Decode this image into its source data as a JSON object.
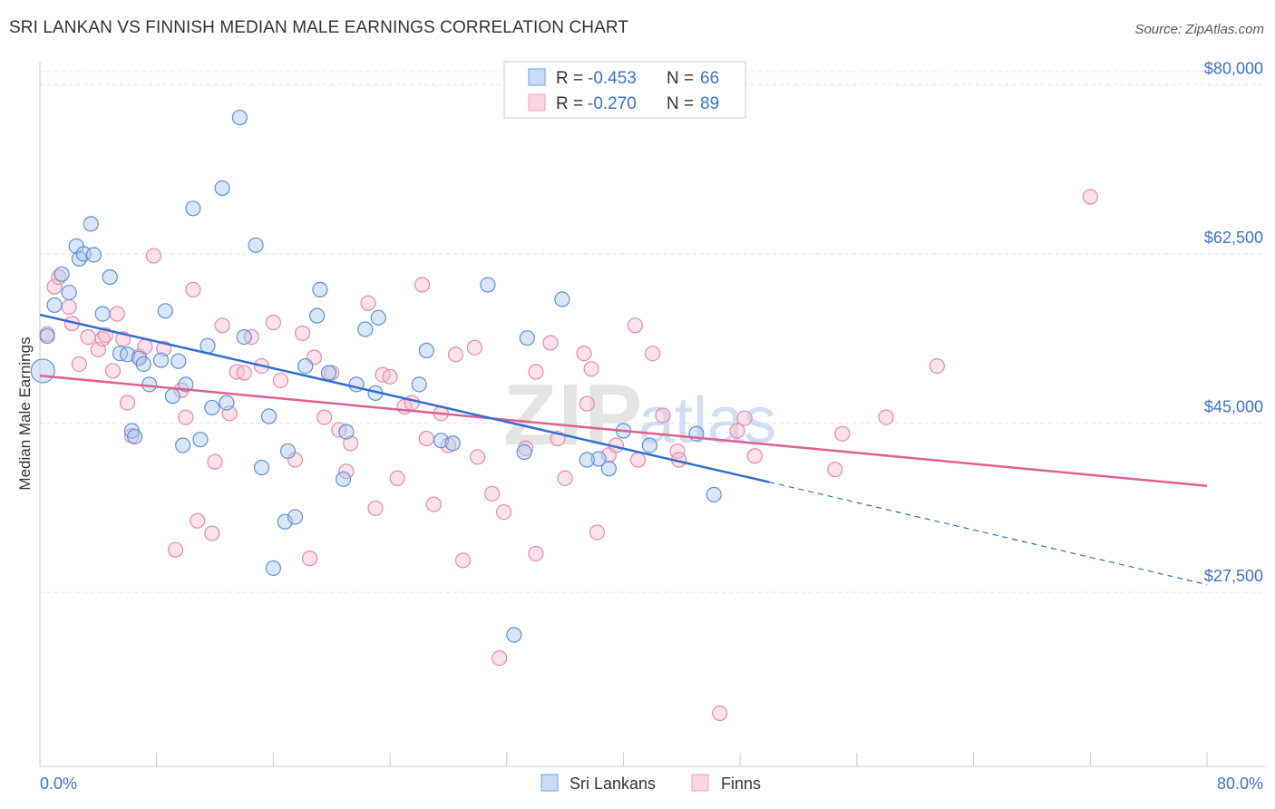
{
  "title": "SRI LANKAN VS FINNISH MEDIAN MALE EARNINGS CORRELATION CHART",
  "source": "Source: ZipAtlas.com",
  "watermark": {
    "left": "ZIP",
    "right": "atlas"
  },
  "legend_top": {
    "rows": [
      {
        "r_label": "R = ",
        "r_value": "-0.453",
        "n_label": "N = ",
        "n_value": "66"
      },
      {
        "r_label": "R = ",
        "r_value": "-0.270",
        "n_label": "N = ",
        "n_value": "89"
      }
    ]
  },
  "legend_bottom": [
    "Sri Lankans",
    "Finns"
  ],
  "chart_data": {
    "type": "scatter",
    "ylabel": "Median Male Earnings",
    "xlabel": "",
    "x_tick_labels": [
      "0.0%",
      "80.0%"
    ],
    "y_tick_labels": [
      "$80,000",
      "$62,500",
      "$45,000",
      "$27,500"
    ],
    "y_ticks": [
      80000,
      62500,
      45000,
      27500
    ],
    "xlim": [
      0,
      0.8
    ],
    "ylim": [
      9500,
      82000
    ],
    "grid": true,
    "legend_position": "top-center",
    "colors": {
      "Sri Lankans": "#6fa0e0",
      "Finns": "#f0a0bd",
      "trend_blue": "#2f6fcf",
      "trend_pink": "#e0608e"
    },
    "series": [
      {
        "name": "Sri Lankans",
        "trend": {
          "x_start": 0.0,
          "y_start": 56200,
          "x_solid_end": 0.5,
          "y_solid_end": 38900,
          "x_end": 0.8,
          "y_end": 28300
        },
        "points": [
          [
            0.002,
            50400
          ],
          [
            0.005,
            54000
          ],
          [
            0.01,
            57200
          ],
          [
            0.015,
            60400
          ],
          [
            0.02,
            58500
          ],
          [
            0.025,
            63300
          ],
          [
            0.027,
            62000
          ],
          [
            0.03,
            62500
          ],
          [
            0.035,
            65600
          ],
          [
            0.037,
            62400
          ],
          [
            0.043,
            56300
          ],
          [
            0.048,
            60100
          ],
          [
            0.055,
            52200
          ],
          [
            0.06,
            52100
          ],
          [
            0.063,
            44200
          ],
          [
            0.065,
            43600
          ],
          [
            0.068,
            51700
          ],
          [
            0.071,
            51100
          ],
          [
            0.075,
            49000
          ],
          [
            0.083,
            51500
          ],
          [
            0.086,
            56600
          ],
          [
            0.091,
            47800
          ],
          [
            0.095,
            51400
          ],
          [
            0.098,
            42700
          ],
          [
            0.1,
            49000
          ],
          [
            0.105,
            67200
          ],
          [
            0.11,
            43300
          ],
          [
            0.115,
            53000
          ],
          [
            0.118,
            46600
          ],
          [
            0.125,
            69300
          ],
          [
            0.128,
            47100
          ],
          [
            0.137,
            76600
          ],
          [
            0.14,
            53900
          ],
          [
            0.148,
            63400
          ],
          [
            0.152,
            40400
          ],
          [
            0.157,
            45700
          ],
          [
            0.16,
            30000
          ],
          [
            0.168,
            34800
          ],
          [
            0.17,
            42100
          ],
          [
            0.175,
            35300
          ],
          [
            0.182,
            50900
          ],
          [
            0.19,
            56100
          ],
          [
            0.192,
            58800
          ],
          [
            0.198,
            50200
          ],
          [
            0.208,
            39200
          ],
          [
            0.21,
            44100
          ],
          [
            0.217,
            49000
          ],
          [
            0.223,
            54700
          ],
          [
            0.23,
            48100
          ],
          [
            0.232,
            55900
          ],
          [
            0.26,
            49000
          ],
          [
            0.265,
            52500
          ],
          [
            0.275,
            43200
          ],
          [
            0.283,
            42900
          ],
          [
            0.307,
            59300
          ],
          [
            0.325,
            23100
          ],
          [
            0.332,
            42000
          ],
          [
            0.334,
            53800
          ],
          [
            0.358,
            57800
          ],
          [
            0.383,
            41300
          ],
          [
            0.39,
            40300
          ],
          [
            0.4,
            44200
          ],
          [
            0.418,
            42700
          ],
          [
            0.45,
            43900
          ],
          [
            0.462,
            37600
          ],
          [
            0.375,
            41200
          ]
        ]
      },
      {
        "name": "Finns",
        "trend": {
          "x_start": 0.0,
          "y_start": 49900,
          "x_end": 0.8,
          "y_end": 38500
        },
        "points": [
          [
            0.005,
            54200
          ],
          [
            0.01,
            59100
          ],
          [
            0.013,
            60100
          ],
          [
            0.02,
            57000
          ],
          [
            0.022,
            55300
          ],
          [
            0.027,
            51100
          ],
          [
            0.033,
            53900
          ],
          [
            0.04,
            52600
          ],
          [
            0.043,
            53700
          ],
          [
            0.045,
            54100
          ],
          [
            0.05,
            50400
          ],
          [
            0.053,
            56300
          ],
          [
            0.057,
            53700
          ],
          [
            0.06,
            47100
          ],
          [
            0.063,
            43700
          ],
          [
            0.068,
            51900
          ],
          [
            0.072,
            52900
          ],
          [
            0.078,
            62300
          ],
          [
            0.085,
            52700
          ],
          [
            0.093,
            31900
          ],
          [
            0.097,
            48400
          ],
          [
            0.1,
            45600
          ],
          [
            0.105,
            58800
          ],
          [
            0.108,
            34900
          ],
          [
            0.118,
            33600
          ],
          [
            0.12,
            41000
          ],
          [
            0.125,
            55100
          ],
          [
            0.13,
            46000
          ],
          [
            0.135,
            50300
          ],
          [
            0.14,
            50200
          ],
          [
            0.145,
            53900
          ],
          [
            0.152,
            50900
          ],
          [
            0.16,
            55400
          ],
          [
            0.165,
            49400
          ],
          [
            0.175,
            41200
          ],
          [
            0.18,
            54300
          ],
          [
            0.185,
            31000
          ],
          [
            0.188,
            51800
          ],
          [
            0.195,
            45600
          ],
          [
            0.2,
            50200
          ],
          [
            0.205,
            44300
          ],
          [
            0.21,
            40000
          ],
          [
            0.213,
            42900
          ],
          [
            0.225,
            57400
          ],
          [
            0.23,
            36200
          ],
          [
            0.235,
            50000
          ],
          [
            0.24,
            49800
          ],
          [
            0.245,
            39300
          ],
          [
            0.25,
            46700
          ],
          [
            0.255,
            47100
          ],
          [
            0.262,
            59300
          ],
          [
            0.265,
            43400
          ],
          [
            0.27,
            36600
          ],
          [
            0.275,
            46000
          ],
          [
            0.28,
            42700
          ],
          [
            0.285,
            52100
          ],
          [
            0.29,
            30800
          ],
          [
            0.298,
            52800
          ],
          [
            0.3,
            41500
          ],
          [
            0.31,
            37700
          ],
          [
            0.315,
            20700
          ],
          [
            0.318,
            35800
          ],
          [
            0.333,
            42400
          ],
          [
            0.34,
            31500
          ],
          [
            0.34,
            50300
          ],
          [
            0.35,
            53300
          ],
          [
            0.355,
            43400
          ],
          [
            0.36,
            39300
          ],
          [
            0.373,
            52200
          ],
          [
            0.375,
            47000
          ],
          [
            0.378,
            50600
          ],
          [
            0.382,
            33700
          ],
          [
            0.39,
            41700
          ],
          [
            0.395,
            42700
          ],
          [
            0.408,
            55100
          ],
          [
            0.41,
            41200
          ],
          [
            0.42,
            52200
          ],
          [
            0.427,
            45800
          ],
          [
            0.437,
            42100
          ],
          [
            0.438,
            41200
          ],
          [
            0.466,
            15000
          ],
          [
            0.478,
            44200
          ],
          [
            0.483,
            45500
          ],
          [
            0.49,
            41600
          ],
          [
            0.545,
            40200
          ],
          [
            0.55,
            43900
          ],
          [
            0.58,
            45600
          ],
          [
            0.615,
            50900
          ],
          [
            0.72,
            68400
          ]
        ]
      }
    ]
  }
}
